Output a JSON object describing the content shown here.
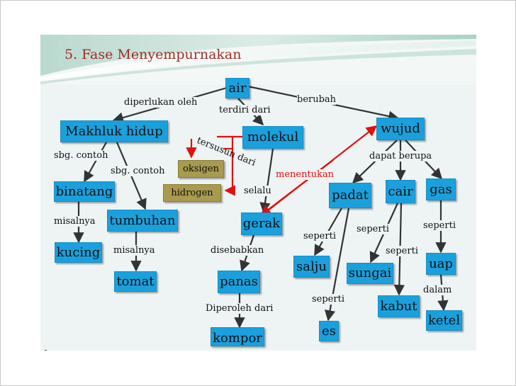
{
  "slide": {
    "title": "5. Fase Menyempurnakan"
  },
  "nodes": {
    "air": "air",
    "makhluk_hidup": "Makhluk hidup",
    "molekul": "molekul",
    "wujud": "wujud",
    "oksigen": "oksigen",
    "hidrogen": "hidrogen",
    "binatang": "binatang",
    "tumbuhan": "tumbuhan",
    "kucing": "kucing",
    "tomat": "tomat",
    "gerak": "gerak",
    "panas": "panas",
    "kompor": "kompor",
    "padat": "padat",
    "cair": "cair",
    "gas": "gas",
    "salju": "salju",
    "sungai": "sungai",
    "kabut": "kabut",
    "uap": "uap",
    "ketel": "ketel",
    "es": "es"
  },
  "links": {
    "diperlukan_oleh": "diperlukan oleh",
    "terdiri_dari": "terdiri dari",
    "berubah": "berubah",
    "tersusun_dari": "tersusun dari",
    "sbg_contoh_1": "sbg. contoh",
    "sbg_contoh_2": "sbg. contoh",
    "menentukan": "menentukan",
    "dapat_berupa": "dapat berupa",
    "selalu": "selalu",
    "misalnya_1": "misalnya",
    "misalnya_2": "misalnya",
    "disebabkan": "disebabkan",
    "diperoleh_dari": "Diperoleh dari",
    "seperti_padat": "seperti",
    "seperti_cair_1": "seperti",
    "seperti_cair_2": "seperti",
    "seperti_gas": "seperti",
    "seperti_es": "seperti",
    "dalam": "dalam"
  },
  "colors": {
    "node_blue": "#1aa0dc",
    "node_olive": "#a89a4f",
    "title_red": "#a12d24",
    "arrow_red": "#e01010",
    "arrow_dark": "#333333"
  }
}
